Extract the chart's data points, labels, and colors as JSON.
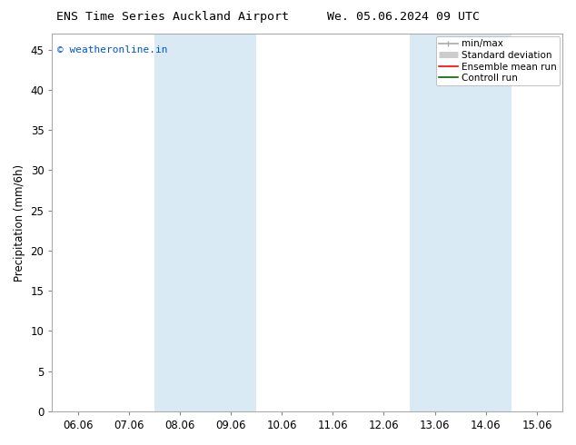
{
  "title_left": "ENS Time Series Auckland Airport",
  "title_right": "We. 05.06.2024 09 UTC",
  "ylabel": "Precipitation (mm/6h)",
  "xlim_dates": [
    "06.06",
    "07.06",
    "08.06",
    "09.06",
    "10.06",
    "11.06",
    "12.06",
    "13.06",
    "14.06",
    "15.06"
  ],
  "ylim": [
    0,
    47
  ],
  "yticks": [
    0,
    5,
    10,
    15,
    20,
    25,
    30,
    35,
    40,
    45
  ],
  "shaded_bands": [
    {
      "xstart": 2.0,
      "xend": 4.0
    },
    {
      "xstart": 7.0,
      "xend": 9.0
    }
  ],
  "band_color": "#daeaf5",
  "copyright_text": "© weatheronline.in",
  "copyright_color": "#0055cc",
  "legend_items": [
    {
      "label": "min/max",
      "color": "#aaaaaa",
      "lw": 1.2
    },
    {
      "label": "Standard deviation",
      "color": "#cccccc",
      "lw": 5
    },
    {
      "label": "Ensemble mean run",
      "color": "#ff0000",
      "lw": 1.2
    },
    {
      "label": "Controll run",
      "color": "#006600",
      "lw": 1.2
    }
  ],
  "bg_color": "#ffffff",
  "plot_bg_color": "#ffffff",
  "spine_color": "#aaaaaa",
  "font_size": 8.5,
  "title_fontsize": 9.5,
  "legend_fontsize": 7.5
}
